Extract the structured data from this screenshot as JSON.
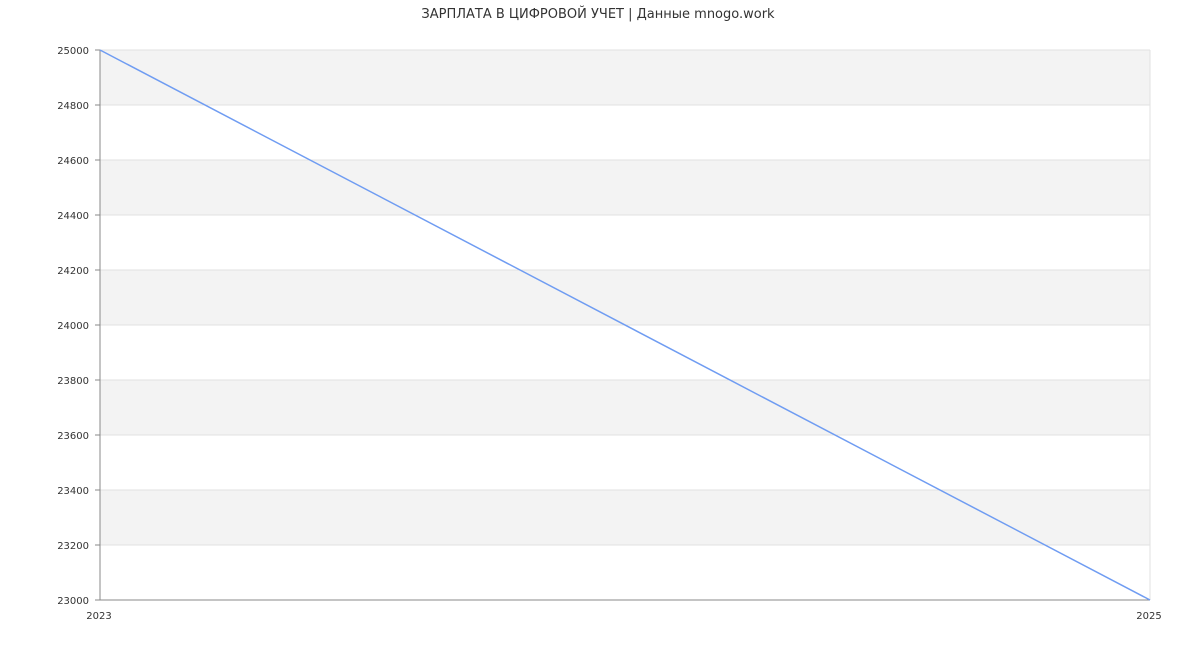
{
  "chart_data": {
    "type": "line",
    "title": "ЗАРПЛАТА В ЦИФРОВОЙ УЧЕТ | Данные mnogo.work",
    "xlabel": "",
    "ylabel": "",
    "x": [
      2023,
      2025
    ],
    "x_ticks": [
      "2023",
      "2025"
    ],
    "series": [
      {
        "values": [
          25000,
          23000
        ]
      }
    ],
    "xlim": [
      2023,
      2025
    ],
    "ylim": [
      23000,
      25000
    ],
    "y_ticks": [
      23000,
      23200,
      23400,
      23600,
      23800,
      24000,
      24200,
      24400,
      24600,
      24800,
      25000
    ],
    "grid": true,
    "alternating_bands": true,
    "colors": {
      "line": "#6f9cf2",
      "band": "#f3f3f3",
      "grid": "#e2e2e2",
      "axis": "#888888"
    }
  }
}
